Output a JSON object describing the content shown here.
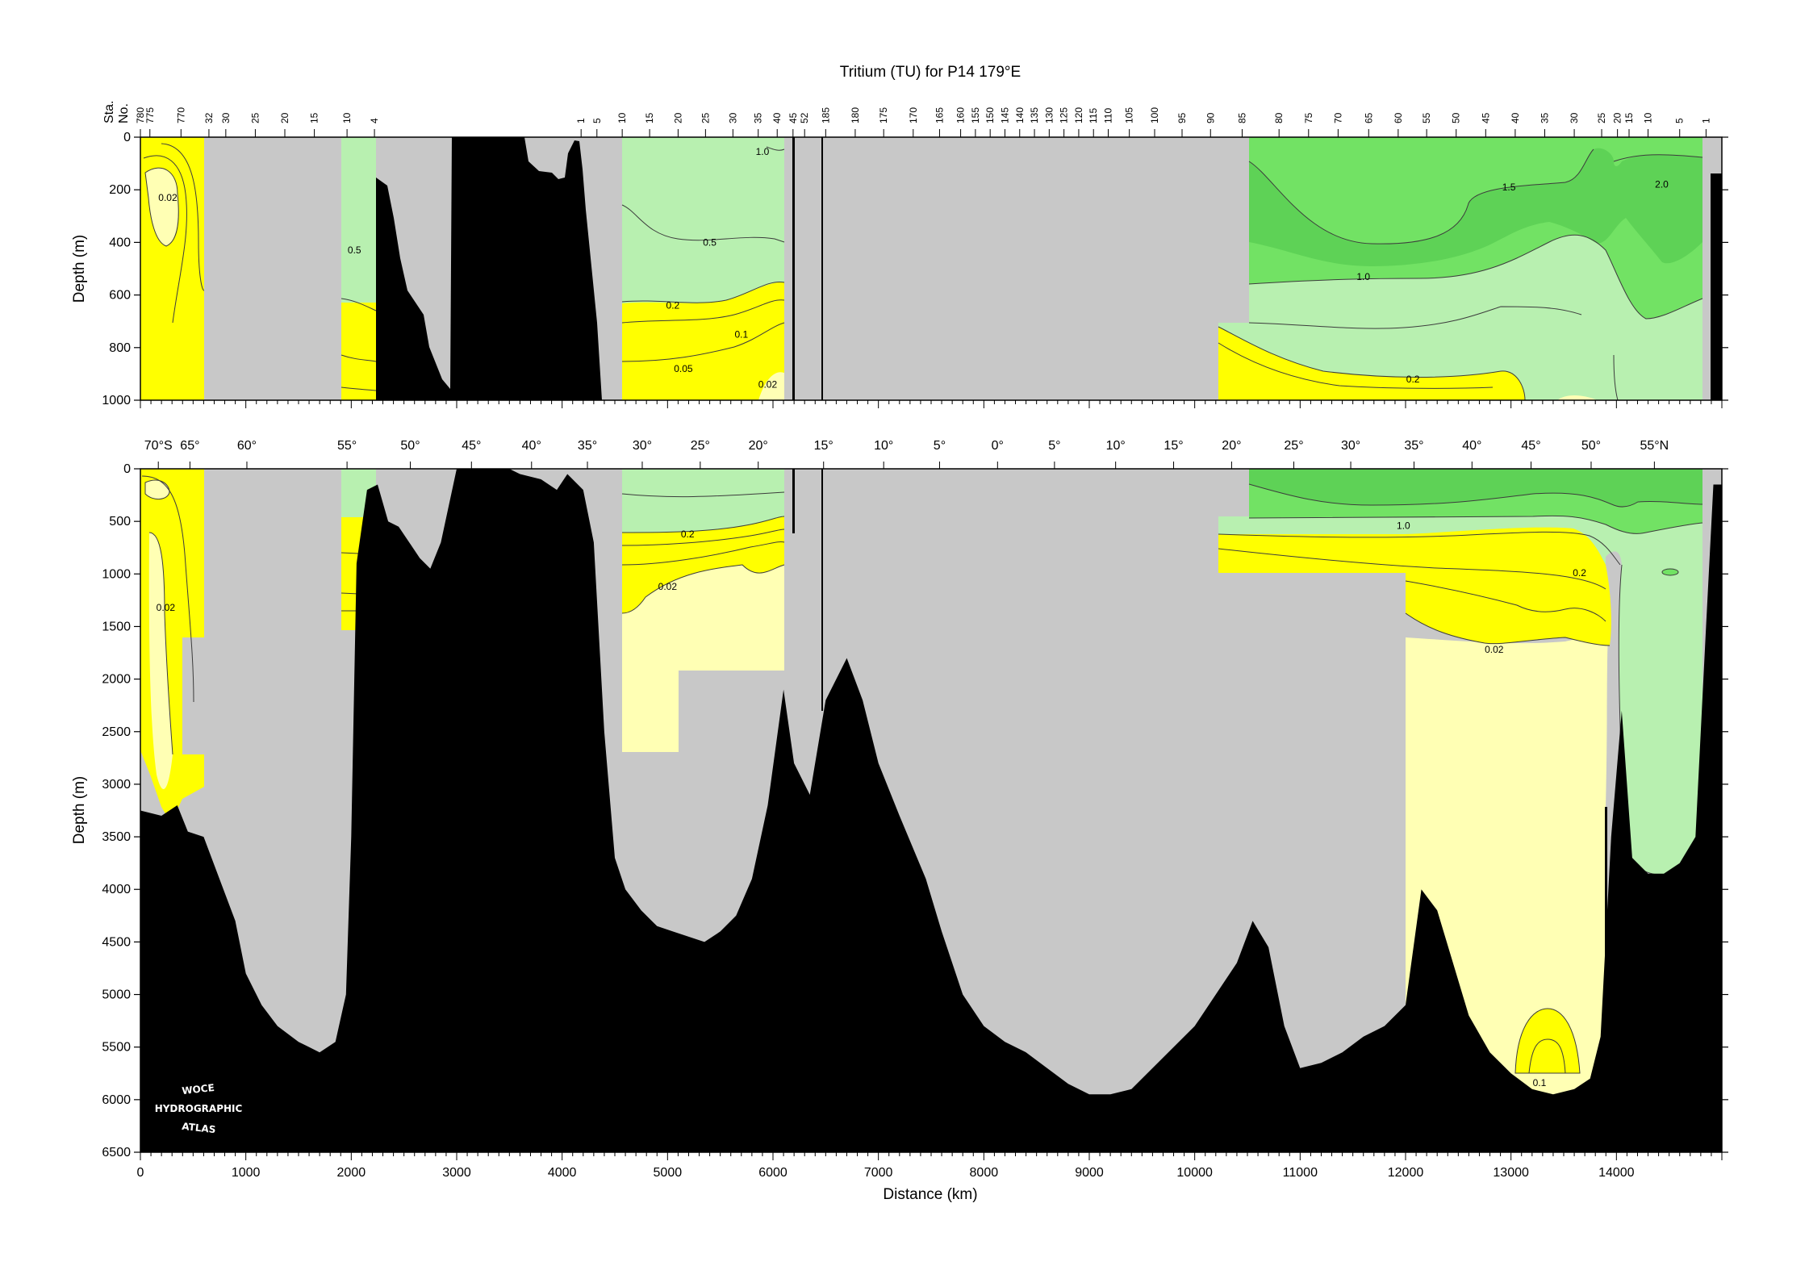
{
  "chart_data": {
    "type": "heatmap",
    "title": "Tritium (TU) for P14 179°E",
    "colors": {
      "no_data": "#c8c8c8",
      "bottom": "#000000",
      "lt_0_05": "#ffffb4",
      "0_05_to_0_5": "#ffff00",
      "0_5_to_1_0": "#b8f0b0",
      "1_0_to_1_5": "#72e264",
      "gt_1_5": "#5ed256",
      "contour_line": "#3c3c3c"
    },
    "station_axis": {
      "label_line1": "Sta.",
      "label_line2": "No.",
      "ticks": [
        {
          "label": "780",
          "km": 0
        },
        {
          "label": "775",
          "km": 90
        },
        {
          "label": "770",
          "km": 385
        },
        {
          "label": "32",
          "km": 650
        },
        {
          "label": "30",
          "km": 810
        },
        {
          "label": "25",
          "km": 1090
        },
        {
          "label": "20",
          "km": 1370
        },
        {
          "label": "15",
          "km": 1650
        },
        {
          "label": "10",
          "km": 1960
        },
        {
          "label": "4",
          "km": 2220
        },
        {
          "label": "1",
          "km": 4180
        },
        {
          "label": "5",
          "km": 4330
        },
        {
          "label": "10",
          "km": 4570
        },
        {
          "label": "15",
          "km": 4830
        },
        {
          "label": "20",
          "km": 5100
        },
        {
          "label": "25",
          "km": 5360
        },
        {
          "label": "30",
          "km": 5620
        },
        {
          "label": "35",
          "km": 5860
        },
        {
          "label": "40",
          "km": 6040
        },
        {
          "label": "45",
          "km": 6190
        },
        {
          "label": "52",
          "km": 6300
        },
        {
          "label": "185",
          "km": 6500
        },
        {
          "label": "180",
          "km": 6780
        },
        {
          "label": "175",
          "km": 7050
        },
        {
          "label": "170",
          "km": 7330
        },
        {
          "label": "165",
          "km": 7580
        },
        {
          "label": "160",
          "km": 7780
        },
        {
          "label": "155",
          "km": 7920
        },
        {
          "label": "150",
          "km": 8060
        },
        {
          "label": "145",
          "km": 8200
        },
        {
          "label": "140",
          "km": 8340
        },
        {
          "label": "135",
          "km": 8480
        },
        {
          "label": "130",
          "km": 8620
        },
        {
          "label": "125",
          "km": 8760
        },
        {
          "label": "120",
          "km": 8900
        },
        {
          "label": "115",
          "km": 9040
        },
        {
          "label": "110",
          "km": 9180
        },
        {
          "label": "105",
          "km": 9380
        },
        {
          "label": "100",
          "km": 9620
        },
        {
          "label": "95",
          "km": 9880
        },
        {
          "label": "90",
          "km": 10150
        },
        {
          "label": "85",
          "km": 10450
        },
        {
          "label": "80",
          "km": 10800
        },
        {
          "label": "75",
          "km": 11080
        },
        {
          "label": "70",
          "km": 11360
        },
        {
          "label": "65",
          "km": 11650
        },
        {
          "label": "60",
          "km": 11930
        },
        {
          "label": "55",
          "km": 12200
        },
        {
          "label": "50",
          "km": 12480
        },
        {
          "label": "45",
          "km": 12760
        },
        {
          "label": "40",
          "km": 13040
        },
        {
          "label": "35",
          "km": 13320
        },
        {
          "label": "30",
          "km": 13600
        },
        {
          "label": "25",
          "km": 13860
        },
        {
          "label": "20",
          "km": 14010
        },
        {
          "label": "15",
          "km": 14120
        },
        {
          "label": "10",
          "km": 14300
        },
        {
          "label": "5",
          "km": 14600
        },
        {
          "label": "1",
          "km": 14850
        }
      ]
    },
    "latitude_ticks": [
      {
        "label": "70°S",
        "km": 170
      },
      {
        "label": "65°",
        "km": 470
      },
      {
        "label": "60°",
        "km": 1010
      },
      {
        "label": "55°",
        "km": 1960
      },
      {
        "label": "50°",
        "km": 2560
      },
      {
        "label": "45°",
        "km": 3140
      },
      {
        "label": "40°",
        "km": 3710
      },
      {
        "label": "35°",
        "km": 4240
      },
      {
        "label": "30°",
        "km": 4760
      },
      {
        "label": "25°",
        "km": 5310
      },
      {
        "label": "20°",
        "km": 5860
      },
      {
        "label": "15°",
        "km": 6480
      },
      {
        "label": "10°",
        "km": 7050
      },
      {
        "label": "5°",
        "km": 7580
      },
      {
        "label": "0°",
        "km": 8130
      },
      {
        "label": "5°",
        "km": 8670
      },
      {
        "label": "10°",
        "km": 9250
      },
      {
        "label": "15°",
        "km": 9800
      },
      {
        "label": "20°",
        "km": 10350
      },
      {
        "label": "25°",
        "km": 10940
      },
      {
        "label": "30°",
        "km": 11480
      },
      {
        "label": "35°",
        "km": 12080
      },
      {
        "label": "40°",
        "km": 12630
      },
      {
        "label": "45°",
        "km": 13190
      },
      {
        "label": "50°",
        "km": 13760
      },
      {
        "label": "55°N",
        "km": 14360
      }
    ],
    "x": {
      "label": "Distance (km)",
      "range": [
        0,
        15000
      ],
      "ticks": [
        0,
        1000,
        2000,
        3000,
        4000,
        5000,
        6000,
        7000,
        8000,
        9000,
        10000,
        11000,
        12000,
        13000,
        14000
      ]
    },
    "top_panel": {
      "ylabel": "Depth (m)",
      "ylim": [
        0,
        1000
      ],
      "yticks": [
        0,
        200,
        400,
        600,
        800,
        1000
      ]
    },
    "bottom_panel": {
      "ylabel": "Depth (m)",
      "ylim": [
        0,
        6500
      ],
      "yticks": [
        0,
        500,
        1000,
        1500,
        2000,
        2500,
        3000,
        3500,
        4000,
        4500,
        5000,
        5500,
        6000,
        6500
      ]
    },
    "contour_labels_top": [
      {
        "text": "0.02",
        "km": 260,
        "depth": 230
      },
      {
        "text": "0.5",
        "km": 2030,
        "depth": 430
      },
      {
        "text": "1.0",
        "km": 5900,
        "depth": 55
      },
      {
        "text": "0.5",
        "km": 5400,
        "depth": 400
      },
      {
        "text": "0.2",
        "km": 5050,
        "depth": 640
      },
      {
        "text": "0.1",
        "km": 5700,
        "depth": 750
      },
      {
        "text": "0.05",
        "km": 5150,
        "depth": 880
      },
      {
        "text": "0.02",
        "km": 5950,
        "depth": 940
      },
      {
        "text": "1.5",
        "km": 12980,
        "depth": 190
      },
      {
        "text": "2.0",
        "km": 14430,
        "depth": 180
      },
      {
        "text": "1.0",
        "km": 11600,
        "depth": 530
      },
      {
        "text": "0.2",
        "km": 12070,
        "depth": 920
      }
    ],
    "contour_labels_bottom": [
      {
        "text": "0.2",
        "km": 5190,
        "depth": 620
      },
      {
        "text": "0.02",
        "km": 5000,
        "depth": 1120
      },
      {
        "text": "0.02",
        "km": 240,
        "depth": 1320
      },
      {
        "text": "1.0",
        "km": 11980,
        "depth": 540
      },
      {
        "text": "0.2",
        "km": 13650,
        "depth": 990
      },
      {
        "text": "0.02",
        "km": 12840,
        "depth": 1720
      },
      {
        "text": "0.1",
        "km": 13270,
        "depth": 5840
      }
    ],
    "logo_lines": [
      "WOCE",
      "HYDROGRAPHIC",
      "ATLAS"
    ]
  }
}
